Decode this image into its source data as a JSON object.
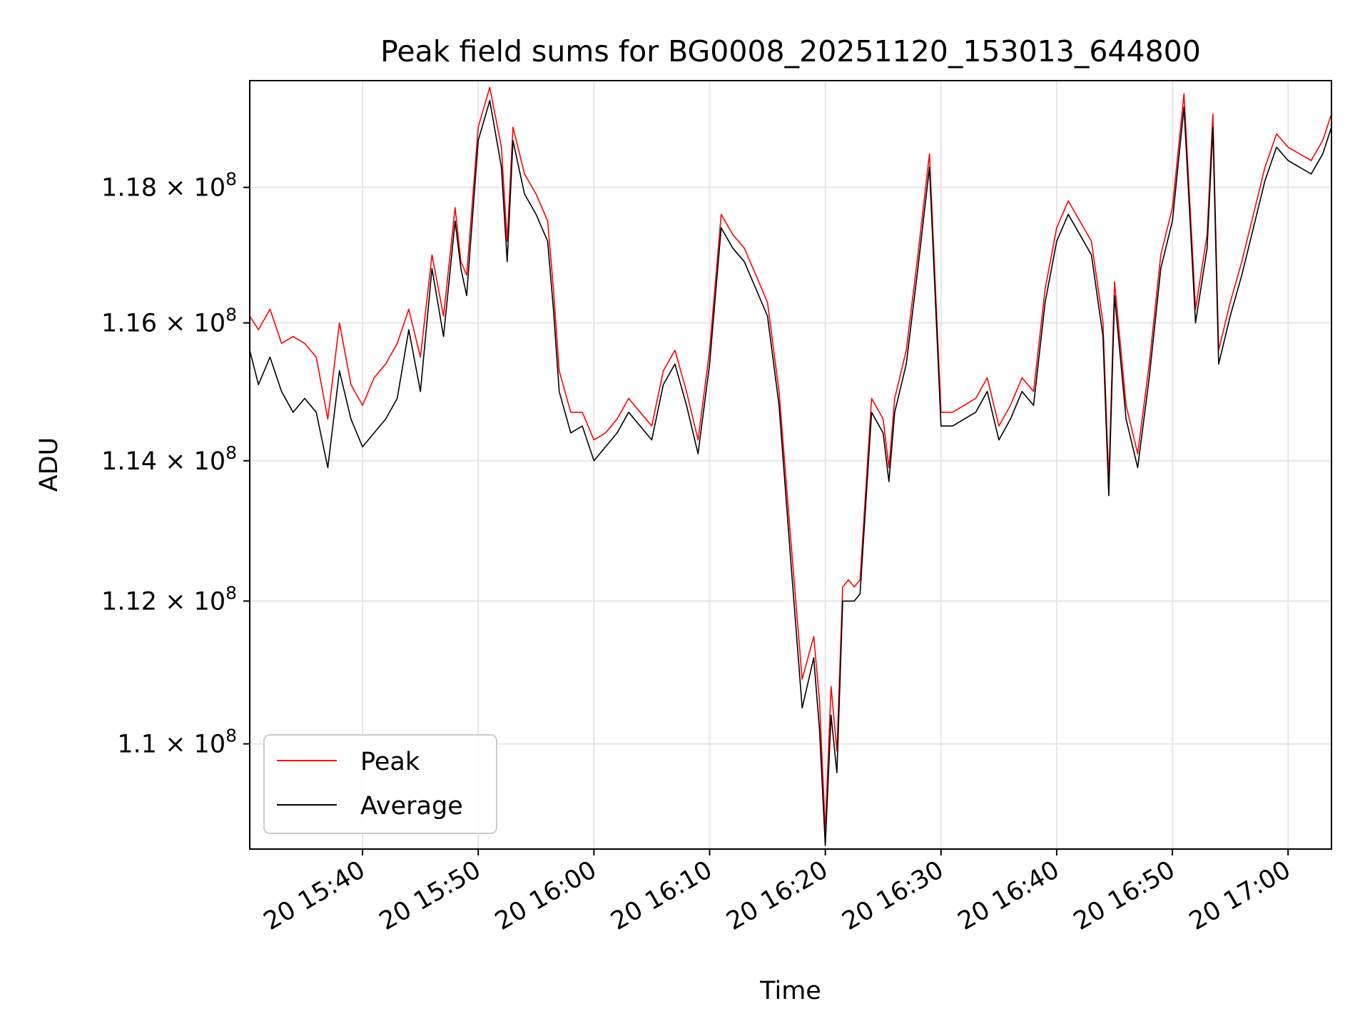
{
  "chart_data": {
    "type": "line",
    "title": "Peak field sums for BG0008_20251120_153013_644800",
    "xlabel": "Time",
    "ylabel": "ADU",
    "xlim": [
      "2025-11-20T15:30:15",
      "2025-11-20T17:03:45"
    ],
    "ylim": [
      108550000,
      119600000
    ],
    "yscale": "log",
    "grid": true,
    "legend_position": "lower-left",
    "x_ticks": [
      "2025-11-20T15:40:00",
      "2025-11-20T15:50:00",
      "2025-11-20T16:00:00",
      "2025-11-20T16:10:00",
      "2025-11-20T16:20:00",
      "2025-11-20T16:30:00",
      "2025-11-20T16:40:00",
      "2025-11-20T16:50:00",
      "2025-11-20T17:00:00"
    ],
    "x_tick_labels": [
      "20 15:40",
      "20 15:50",
      "20 16:00",
      "20 16:10",
      "20 16:20",
      "20 16:30",
      "20 16:40",
      "20 16:50",
      "20 17:00"
    ],
    "y_ticks": [
      110000000,
      112000000,
      114000000,
      116000000,
      118000000
    ],
    "y_tick_labels": [
      {
        "mantissa": "1.1",
        "exponent": "8"
      },
      {
        "mantissa": "1.12",
        "exponent": "8"
      },
      {
        "mantissa": "1.14",
        "exponent": "8"
      },
      {
        "mantissa": "1.16",
        "exponent": "8"
      },
      {
        "mantissa": "1.18",
        "exponent": "8"
      }
    ],
    "x": [
      "2025-11-20T15:30:15",
      "2025-11-20T15:31:00",
      "2025-11-20T15:32:00",
      "2025-11-20T15:33:00",
      "2025-11-20T15:34:00",
      "2025-11-20T15:35:00",
      "2025-11-20T15:36:00",
      "2025-11-20T15:37:00",
      "2025-11-20T15:38:00",
      "2025-11-20T15:39:00",
      "2025-11-20T15:40:00",
      "2025-11-20T15:41:00",
      "2025-11-20T15:42:00",
      "2025-11-20T15:43:00",
      "2025-11-20T15:44:00",
      "2025-11-20T15:45:00",
      "2025-11-20T15:46:00",
      "2025-11-20T15:47:00",
      "2025-11-20T15:48:00",
      "2025-11-20T15:48:30",
      "2025-11-20T15:49:00",
      "2025-11-20T15:50:00",
      "2025-11-20T15:51:00",
      "2025-11-20T15:52:00",
      "2025-11-20T15:52:30",
      "2025-11-20T15:53:00",
      "2025-11-20T15:54:00",
      "2025-11-20T15:55:00",
      "2025-11-20T15:56:00",
      "2025-11-20T15:56:30",
      "2025-11-20T15:57:00",
      "2025-11-20T15:58:00",
      "2025-11-20T15:59:00",
      "2025-11-20T16:00:00",
      "2025-11-20T16:01:00",
      "2025-11-20T16:02:00",
      "2025-11-20T16:03:00",
      "2025-11-20T16:04:00",
      "2025-11-20T16:05:00",
      "2025-11-20T16:06:00",
      "2025-11-20T16:07:00",
      "2025-11-20T16:08:00",
      "2025-11-20T16:09:00",
      "2025-11-20T16:10:00",
      "2025-11-20T16:11:00",
      "2025-11-20T16:12:00",
      "2025-11-20T16:13:00",
      "2025-11-20T16:14:00",
      "2025-11-20T16:15:00",
      "2025-11-20T16:16:00",
      "2025-11-20T16:17:00",
      "2025-11-20T16:18:00",
      "2025-11-20T16:19:00",
      "2025-11-20T16:19:30",
      "2025-11-20T16:20:00",
      "2025-11-20T16:20:30",
      "2025-11-20T16:21:00",
      "2025-11-20T16:21:30",
      "2025-11-20T16:22:00",
      "2025-11-20T16:22:30",
      "2025-11-20T16:23:00",
      "2025-11-20T16:24:00",
      "2025-11-20T16:25:00",
      "2025-11-20T16:25:30",
      "2025-11-20T16:26:00",
      "2025-11-20T16:27:00",
      "2025-11-20T16:28:00",
      "2025-11-20T16:29:00",
      "2025-11-20T16:30:00",
      "2025-11-20T16:31:00",
      "2025-11-20T16:32:00",
      "2025-11-20T16:33:00",
      "2025-11-20T16:34:00",
      "2025-11-20T16:35:00",
      "2025-11-20T16:36:00",
      "2025-11-20T16:37:00",
      "2025-11-20T16:38:00",
      "2025-11-20T16:39:00",
      "2025-11-20T16:40:00",
      "2025-11-20T16:41:00",
      "2025-11-20T16:42:00",
      "2025-11-20T16:43:00",
      "2025-11-20T16:44:00",
      "2025-11-20T16:44:30",
      "2025-11-20T16:45:00",
      "2025-11-20T16:46:00",
      "2025-11-20T16:47:00",
      "2025-11-20T16:48:00",
      "2025-11-20T16:49:00",
      "2025-11-20T16:50:00",
      "2025-11-20T16:51:00",
      "2025-11-20T16:52:00",
      "2025-11-20T16:53:00",
      "2025-11-20T16:53:30",
      "2025-11-20T16:54:00",
      "2025-11-20T16:55:00",
      "2025-11-20T16:56:00",
      "2025-11-20T16:57:00",
      "2025-11-20T16:58:00",
      "2025-11-20T16:59:00",
      "2025-11-20T17:00:00",
      "2025-11-20T17:01:00",
      "2025-11-20T17:02:00",
      "2025-11-20T17:03:00",
      "2025-11-20T17:03:45"
    ],
    "series": [
      {
        "name": "Peak",
        "color": "#ff0000",
        "values": [
          116100000,
          115900000,
          116200000,
          115700000,
          115800000,
          115700000,
          115500000,
          114600000,
          116000000,
          115100000,
          114800000,
          115200000,
          115400000,
          115700000,
          116200000,
          115500000,
          117000000,
          116100000,
          117700000,
          116900000,
          116700000,
          118900000,
          119500000,
          118600000,
          117200000,
          118900000,
          118200000,
          117900000,
          117500000,
          116500000,
          115300000,
          114700000,
          114700000,
          114300000,
          114400000,
          114600000,
          114900000,
          114700000,
          114500000,
          115300000,
          115600000,
          115000000,
          114300000,
          115600000,
          117600000,
          117300000,
          117100000,
          116700000,
          116300000,
          115000000,
          112900000,
          110900000,
          111500000,
          110600000,
          108800000,
          110800000,
          109900000,
          112200000,
          112300000,
          112200000,
          112300000,
          114900000,
          114600000,
          113900000,
          114900000,
          115600000,
          117000000,
          118500000,
          114700000,
          114700000,
          114800000,
          114900000,
          115200000,
          114500000,
          114800000,
          115200000,
          115000000,
          116500000,
          117400000,
          117800000,
          117500000,
          117200000,
          116000000,
          113700000,
          116600000,
          114800000,
          114100000,
          115400000,
          117000000,
          117700000,
          119400000,
          116200000,
          117300000,
          119100000,
          115600000,
          116300000,
          116900000,
          117600000,
          118300000,
          118800000,
          118600000,
          118500000,
          118400000,
          118700000,
          119100000
        ]
      },
      {
        "name": "Average",
        "color": "#000000",
        "values": [
          115600000,
          115100000,
          115500000,
          115000000,
          114700000,
          114900000,
          114700000,
          113900000,
          115300000,
          114600000,
          114200000,
          114400000,
          114600000,
          114900000,
          115900000,
          115000000,
          116800000,
          115800000,
          117500000,
          116800000,
          116400000,
          118700000,
          119300000,
          118300000,
          116900000,
          118700000,
          117900000,
          117600000,
          117200000,
          116200000,
          115000000,
          114400000,
          114500000,
          114000000,
          114200000,
          114400000,
          114700000,
          114500000,
          114300000,
          115100000,
          115400000,
          114800000,
          114100000,
          115400000,
          117400000,
          117100000,
          116900000,
          116500000,
          116100000,
          114800000,
          112600000,
          110500000,
          111200000,
          110200000,
          108600000,
          110400000,
          109600000,
          112000000,
          112000000,
          112000000,
          112100000,
          114700000,
          114400000,
          113700000,
          114700000,
          115400000,
          116800000,
          118300000,
          114500000,
          114500000,
          114600000,
          114700000,
          115000000,
          114300000,
          114600000,
          115000000,
          114800000,
          116300000,
          117200000,
          117600000,
          117300000,
          117000000,
          115800000,
          113500000,
          116400000,
          114600000,
          113900000,
          115200000,
          116800000,
          117500000,
          119200000,
          116000000,
          117100000,
          118900000,
          115400000,
          116100000,
          116700000,
          117400000,
          118100000,
          118600000,
          118400000,
          118300000,
          118200000,
          118500000,
          118900000
        ]
      }
    ]
  }
}
